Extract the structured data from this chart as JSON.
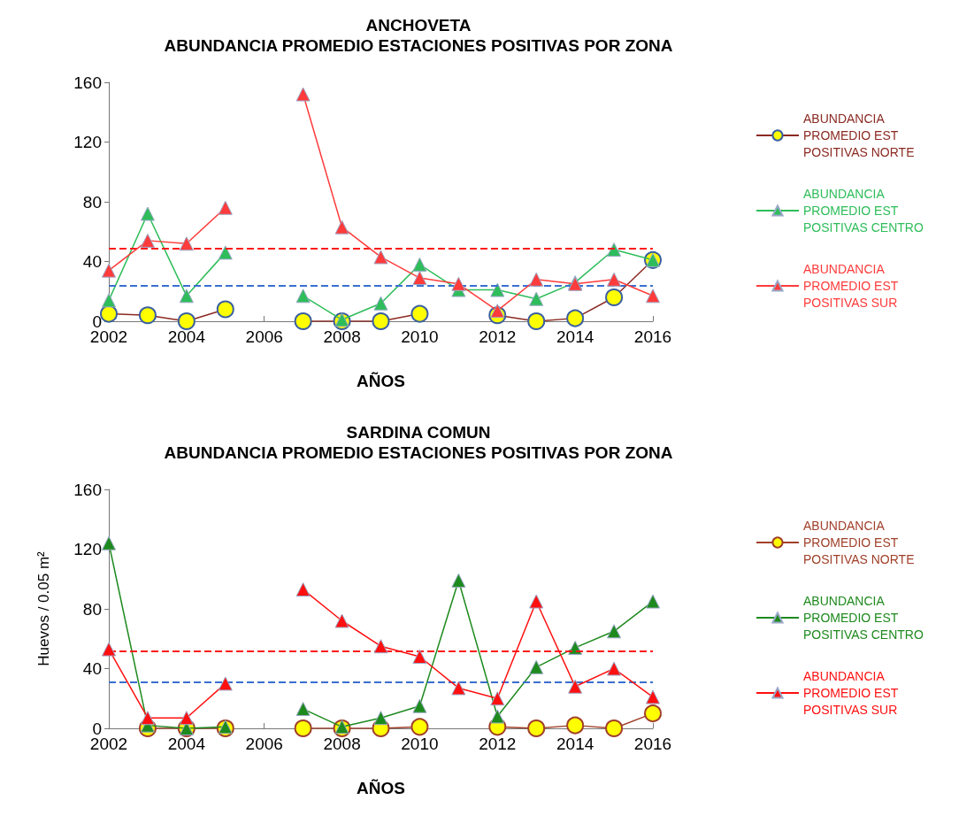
{
  "chart_data": [
    {
      "type": "line",
      "title": "ANCHOVETA",
      "subtitle": "ABUNDANCIA PROMEDIO ESTACIONES POSITIVAS POR ZONA",
      "xlabel": "AÑOS",
      "x": [
        2002,
        2003,
        2004,
        2005,
        2006,
        2007,
        2008,
        2009,
        2010,
        2011,
        2012,
        2013,
        2014,
        2015,
        2016
      ],
      "xlim": [
        2002,
        2016
      ],
      "xticks": [
        2002,
        2004,
        2006,
        2008,
        2010,
        2012,
        2014,
        2016
      ],
      "ylim": [
        0,
        160
      ],
      "yticks": [
        0,
        40,
        80,
        120,
        160
      ],
      "grid": false,
      "legend": "right",
      "series": [
        {
          "name": "ABUNDANCIA PROMEDIO EST POSITIVAS NORTE",
          "color": "#8b2a22",
          "marker": "circle",
          "values": [
            5,
            4,
            0,
            8,
            null,
            0,
            0,
            0,
            5,
            null,
            4,
            0,
            2,
            16,
            41
          ]
        },
        {
          "name": "ABUNDANCIA PROMEDIO EST POSITIVAS CENTRO",
          "color": "#2ebd5a",
          "marker": "triangle",
          "values": [
            14,
            72,
            17,
            46,
            null,
            17,
            1,
            12,
            38,
            21,
            21,
            15,
            26,
            48,
            41
          ]
        },
        {
          "name": "ABUNDANCIA PROMEDIO EST POSITIVAS SUR",
          "color": "#ff3b3b",
          "marker": "triangle",
          "values": [
            34,
            54,
            52,
            76,
            null,
            152,
            63,
            43,
            29,
            25,
            7,
            28,
            25,
            28,
            17
          ]
        }
      ],
      "ref_lines": [
        {
          "axis": "y",
          "value": 49,
          "color": "#ff1a1a",
          "line_style": "dashed"
        },
        {
          "axis": "y",
          "value": 24,
          "color": "#3a6fd0",
          "line_style": "dashed"
        }
      ]
    },
    {
      "type": "line",
      "title": "SARDINA COMUN",
      "subtitle": "ABUNDANCIA PROMEDIO ESTACIONES POSITIVAS POR ZONA",
      "xlabel": "AÑOS",
      "ylabel": "Huevos / 0.05 m²",
      "x": [
        2002,
        2003,
        2004,
        2005,
        2006,
        2007,
        2008,
        2009,
        2010,
        2011,
        2012,
        2013,
        2014,
        2015,
        2016
      ],
      "xlim": [
        2002,
        2016
      ],
      "xticks": [
        2002,
        2004,
        2006,
        2008,
        2010,
        2012,
        2014,
        2016
      ],
      "ylim": [
        0,
        160
      ],
      "yticks": [
        0,
        40,
        80,
        120,
        160
      ],
      "grid": false,
      "legend": "right",
      "series": [
        {
          "name": "ABUNDANCIA PROMEDIO EST POSITIVAS NORTE",
          "color": "#a0402a",
          "marker": "circle",
          "values": [
            null,
            0,
            0,
            0,
            null,
            0,
            0,
            0,
            1,
            null,
            1,
            0,
            2,
            0,
            10
          ]
        },
        {
          "name": "ABUNDANCIA PROMEDIO EST POSITIVAS CENTRO",
          "color": "#1e8a1e",
          "marker": "triangle",
          "values": [
            124,
            2,
            0,
            1,
            null,
            13,
            1,
            7,
            15,
            99,
            8,
            41,
            54,
            65,
            85
          ]
        },
        {
          "name": "ABUNDANCIA PROMEDIO EST POSITIVAS SUR",
          "color": "#ff1010",
          "marker": "triangle",
          "values": [
            53,
            7,
            7,
            30,
            null,
            93,
            72,
            55,
            48,
            27,
            20,
            85,
            28,
            40,
            21
          ]
        }
      ],
      "ref_lines": [
        {
          "axis": "y",
          "value": 52,
          "color": "#ff1a1a",
          "line_style": "dashed"
        },
        {
          "axis": "y",
          "value": 31,
          "color": "#3a6fd0",
          "line_style": "dashed"
        }
      ]
    }
  ]
}
